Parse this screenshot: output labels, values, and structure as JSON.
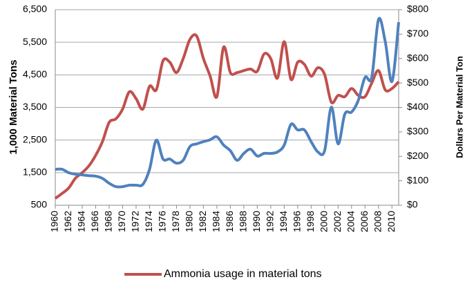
{
  "chart_data": {
    "type": "line",
    "x": [
      1960,
      1961,
      1962,
      1963,
      1964,
      1965,
      1966,
      1967,
      1968,
      1969,
      1970,
      1971,
      1972,
      1973,
      1974,
      1975,
      1976,
      1977,
      1978,
      1979,
      1980,
      1981,
      1982,
      1983,
      1984,
      1985,
      1986,
      1987,
      1988,
      1989,
      1990,
      1991,
      1992,
      1993,
      1994,
      1995,
      1996,
      1997,
      1998,
      1999,
      2000,
      2001,
      2002,
      2003,
      2004,
      2005,
      2006,
      2007,
      2008,
      2009,
      2010,
      2011
    ],
    "series": [
      {
        "name": "Ammonia usage in material tons",
        "color": "#c0504d",
        "values": [
          710,
          860,
          1030,
          1330,
          1500,
          1710,
          2030,
          2450,
          3040,
          3150,
          3450,
          3980,
          3770,
          3450,
          4150,
          4040,
          4930,
          4890,
          4570,
          5000,
          5590,
          5690,
          5000,
          4460,
          3830,
          5350,
          4570,
          4570,
          4630,
          4680,
          4610,
          5140,
          5000,
          4400,
          5520,
          4360,
          4890,
          4820,
          4460,
          4720,
          4510,
          3660,
          3870,
          3830,
          4080,
          3870,
          3830,
          4250,
          4630,
          4040,
          4080,
          4290
        ]
      },
      {
        "color": "#4f81bd",
        "axis": "y2",
        "values": [
          147,
          147,
          133,
          127,
          124,
          121,
          119,
          110,
          90,
          76,
          76,
          82,
          82,
          85,
          147,
          266,
          189,
          189,
          172,
          184,
          240,
          251,
          260,
          268,
          280,
          246,
          223,
          184,
          212,
          229,
          201,
          212,
          212,
          218,
          246,
          331,
          308,
          308,
          260,
          218,
          223,
          401,
          251,
          373,
          381,
          429,
          523,
          523,
          760,
          670,
          506,
          749
        ]
      }
    ],
    "xlim": [
      1960,
      2011
    ],
    "xticks": [
      1960,
      1962,
      1964,
      1966,
      1968,
      1970,
      1972,
      1974,
      1976,
      1978,
      1980,
      1982,
      1984,
      1986,
      1988,
      1990,
      1992,
      1994,
      1996,
      1998,
      2000,
      2002,
      2004,
      2006,
      2008,
      2010
    ],
    "ylim": [
      500,
      6500
    ],
    "yticks": [
      500,
      {
        "value": 1500,
        "label": "1,500"
      },
      {
        "value": 2500,
        "label": "2,500"
      },
      {
        "value": 3500,
        "label": "3,500"
      },
      {
        "value": 4500,
        "label": "4,500"
      },
      {
        "value": 5500,
        "label": "5,500"
      },
      {
        "value": 6500,
        "label": "6,500"
      }
    ],
    "y2lim": [
      0,
      800
    ],
    "y2ticks": [
      {
        "value": 0,
        "label": "$0"
      },
      {
        "value": 100,
        "label": "$100"
      },
      {
        "value": 200,
        "label": "$200"
      },
      {
        "value": 300,
        "label": "$300"
      },
      {
        "value": 400,
        "label": "$400"
      },
      {
        "value": 500,
        "label": "$500"
      },
      {
        "value": 600,
        "label": "$600"
      },
      {
        "value": 700,
        "label": "$700"
      },
      {
        "value": 800,
        "label": "$800"
      }
    ],
    "ylabel": "1,000 Material Tons",
    "y2label": "Dollars Per Material Ton",
    "grid": true,
    "legend": "bottom"
  }
}
